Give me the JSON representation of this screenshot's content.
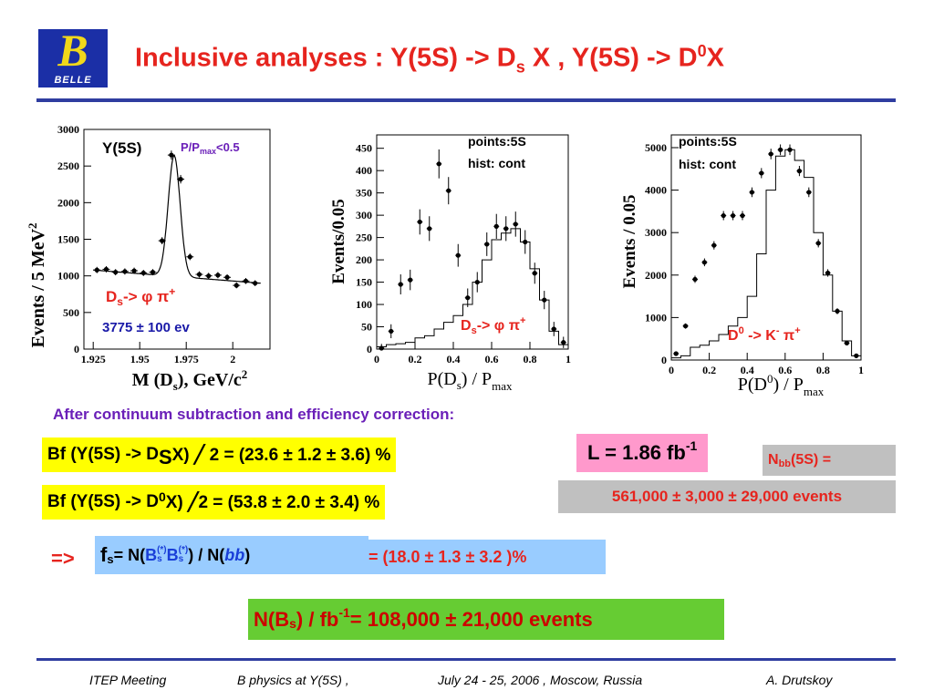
{
  "header": {
    "logo_letter": "B",
    "logo_text": "BELLE",
    "title_a": "Inclusive analyses : Y(5S) -> D",
    "title_sub": "s",
    "title_b": " X ,  Y(5S) -> D",
    "title_sup": "0",
    "title_c": "X"
  },
  "plots": {
    "left": {
      "label": "Y(5S)",
      "cut_a": "P/P",
      "cut_sub": "max",
      "cut_b": "<0.5",
      "decay_a": "D",
      "decay_sub": "s",
      "decay_b": "-> φ π",
      "decay_sup": "+",
      "yield": "3775 ± 100 ev",
      "ylabel": "Events / 5 MeV",
      "ylabel_sup": "2",
      "xlabel": "M (D",
      "xlabel_sub": "s",
      "xlabel_b": "), GeV/c",
      "xlabel_sup": "2"
    },
    "middle": {
      "legend1": "points:5S",
      "legend2": "hist: cont",
      "decay_a": "D",
      "decay_sub": "s",
      "decay_b": "-> φ π",
      "decay_sup": "+",
      "ylabel": "Events/0.05",
      "xlabel": "P(D",
      "xlabel_sub": "s",
      "xlabel_b": ") / P",
      "xlabel_sub2": "max"
    },
    "right": {
      "legend1": "points:5S",
      "legend2": "hist: cont",
      "decay_a": "D",
      "decay_sup": "0",
      "decay_b": " -> K",
      "decay_sup2": "-",
      "decay_c": " π",
      "decay_sup3": "+",
      "ylabel": "Events / 0.05",
      "xlabel": "P(D",
      "xlabel_sup": "0",
      "xlabel_b": ") / P",
      "xlabel_sub": "max"
    }
  },
  "chart_data": [
    {
      "type": "scatter",
      "label": "Y(5S)",
      "xlabel": "M (Ds), GeV/c2",
      "ylabel": "Events / 5 MeV2",
      "xlim": [
        1.92,
        2.02
      ],
      "ylim": [
        0,
        3000
      ],
      "xticks": [
        "1.925",
        "1.95",
        "1.975",
        "2"
      ],
      "yticks": [
        "0",
        "500",
        "1000",
        "1500",
        "2000",
        "2500",
        "3000"
      ],
      "x": [
        1.927,
        1.932,
        1.937,
        1.942,
        1.947,
        1.952,
        1.957,
        1.962,
        1.967,
        1.972,
        1.977,
        1.982,
        1.987,
        1.992,
        1.997,
        2.002,
        2.007,
        2.012
      ],
      "y": [
        1080,
        1090,
        1050,
        1060,
        1070,
        1040,
        1050,
        1480,
        2650,
        2320,
        1260,
        1020,
        1000,
        1010,
        980,
        870,
        930,
        900
      ]
    },
    {
      "type": "scatter+histogram",
      "xlabel": "P(Ds) / Pmax",
      "ylabel": "Events/0.05",
      "xlim": [
        0,
        1
      ],
      "ylim": [
        0,
        480
      ],
      "xticks": [
        "0",
        "0.2",
        "0.4",
        "0.6",
        "0.8",
        "1"
      ],
      "yticks": [
        "0",
        "50",
        "100",
        "150",
        "200",
        "250",
        "300",
        "350",
        "400",
        "450"
      ],
      "series": [
        {
          "name": "points:5S",
          "x": [
            0.025,
            0.075,
            0.125,
            0.175,
            0.225,
            0.275,
            0.325,
            0.375,
            0.425,
            0.475,
            0.525,
            0.575,
            0.625,
            0.675,
            0.725,
            0.775,
            0.825,
            0.875,
            0.925,
            0.975
          ],
          "y": [
            2,
            40,
            145,
            155,
            285,
            270,
            415,
            355,
            210,
            115,
            150,
            235,
            275,
            270,
            280,
            240,
            170,
            110,
            45,
            15
          ]
        },
        {
          "name": "hist: cont",
          "x": [
            0.025,
            0.075,
            0.125,
            0.175,
            0.225,
            0.275,
            0.325,
            0.375,
            0.425,
            0.475,
            0.525,
            0.575,
            0.625,
            0.675,
            0.725,
            0.775,
            0.825,
            0.875,
            0.925,
            0.975
          ],
          "y": [
            5,
            10,
            12,
            15,
            25,
            30,
            45,
            60,
            75,
            100,
            150,
            200,
            245,
            260,
            270,
            240,
            180,
            110,
            40,
            10
          ]
        }
      ]
    },
    {
      "type": "scatter+histogram",
      "xlabel": "P(D0) / Pmax",
      "ylabel": "Events / 0.05",
      "xlim": [
        0,
        1
      ],
      "ylim": [
        0,
        5300
      ],
      "xticks": [
        "0",
        "0.2",
        "0.4",
        "0.6",
        "0.8",
        "1"
      ],
      "yticks": [
        "0",
        "1000",
        "2000",
        "3000",
        "4000",
        "5000"
      ],
      "series": [
        {
          "name": "points:5S",
          "x": [
            0.025,
            0.075,
            0.125,
            0.175,
            0.225,
            0.275,
            0.325,
            0.375,
            0.425,
            0.475,
            0.525,
            0.575,
            0.625,
            0.675,
            0.725,
            0.775,
            0.825,
            0.875,
            0.925,
            0.975
          ],
          "y": [
            150,
            800,
            1900,
            2300,
            2700,
            3400,
            3400,
            3400,
            3950,
            4400,
            4850,
            4950,
            4950,
            4450,
            3950,
            2750,
            2050,
            1150,
            400,
            100
          ]
        },
        {
          "name": "hist: cont",
          "x": [
            0.025,
            0.075,
            0.125,
            0.175,
            0.225,
            0.275,
            0.325,
            0.375,
            0.425,
            0.475,
            0.525,
            0.575,
            0.625,
            0.675,
            0.725,
            0.775,
            0.825,
            0.875,
            0.925,
            0.975
          ],
          "y": [
            50,
            100,
            300,
            350,
            450,
            600,
            800,
            1000,
            1500,
            2500,
            4000,
            4800,
            4950,
            4700,
            4300,
            3000,
            2000,
            1150,
            450,
            100
          ]
        }
      ]
    }
  ],
  "results": {
    "heading": "After continuum subtraction and efficiency correction:",
    "bf1_a": "Bf (Y(5S) -> D",
    "bf1_sub": "S",
    "bf1_b": " X) ╱ 2 = (23.6 ± 1.2 ± 3.6) %",
    "bf2_a": "Bf (Y(5S) -> D",
    "bf2_sup": "0",
    "bf2_b": " X) ╱2 = (53.8 ± 2.0 ± 3.4) %",
    "lumi_a": "L = 1.86 fb",
    "lumi_sup": "-1",
    "nbb_a": "N",
    "nbb_sub": "bb",
    "nbb_b": "(5S) =",
    "nbb_value": "561,000 ± 3,000 ± 29,000  events",
    "arrow": "=>",
    "fs_a": "f",
    "fs_sub": "s",
    "fs_b": " = N(",
    "fs_c": "B",
    "fs_c_sub": "s",
    "fs_c_sup": "(*)",
    "fs_d": " B",
    "fs_d_sub": "s",
    "fs_d_sup": "(*)",
    "fs_e": ") / N(",
    "fs_f": "bb",
    "fs_g": ")",
    "fs_value": " = (18.0 ± 1.3 ± 3.2 )%",
    "nbs_a": "N(B",
    "nbs_sub": "s",
    "nbs_b": ") / fb",
    "nbs_sup": "-1",
    "nbs_value": "  = 108,000 ± 21,000 events"
  },
  "footer": {
    "meeting": "ITEP Meeting",
    "topic": "B physics at Y(5S)  ,",
    "date": "July 24 - 25, 2006 , Moscow, Russia",
    "author": "A. Drutskoy"
  },
  "colors": {
    "title": "#e6241e",
    "rule": "#2f3da0",
    "purple": "#6a1fb8",
    "blue": "#1a1aa8",
    "red": "#e6241e"
  }
}
